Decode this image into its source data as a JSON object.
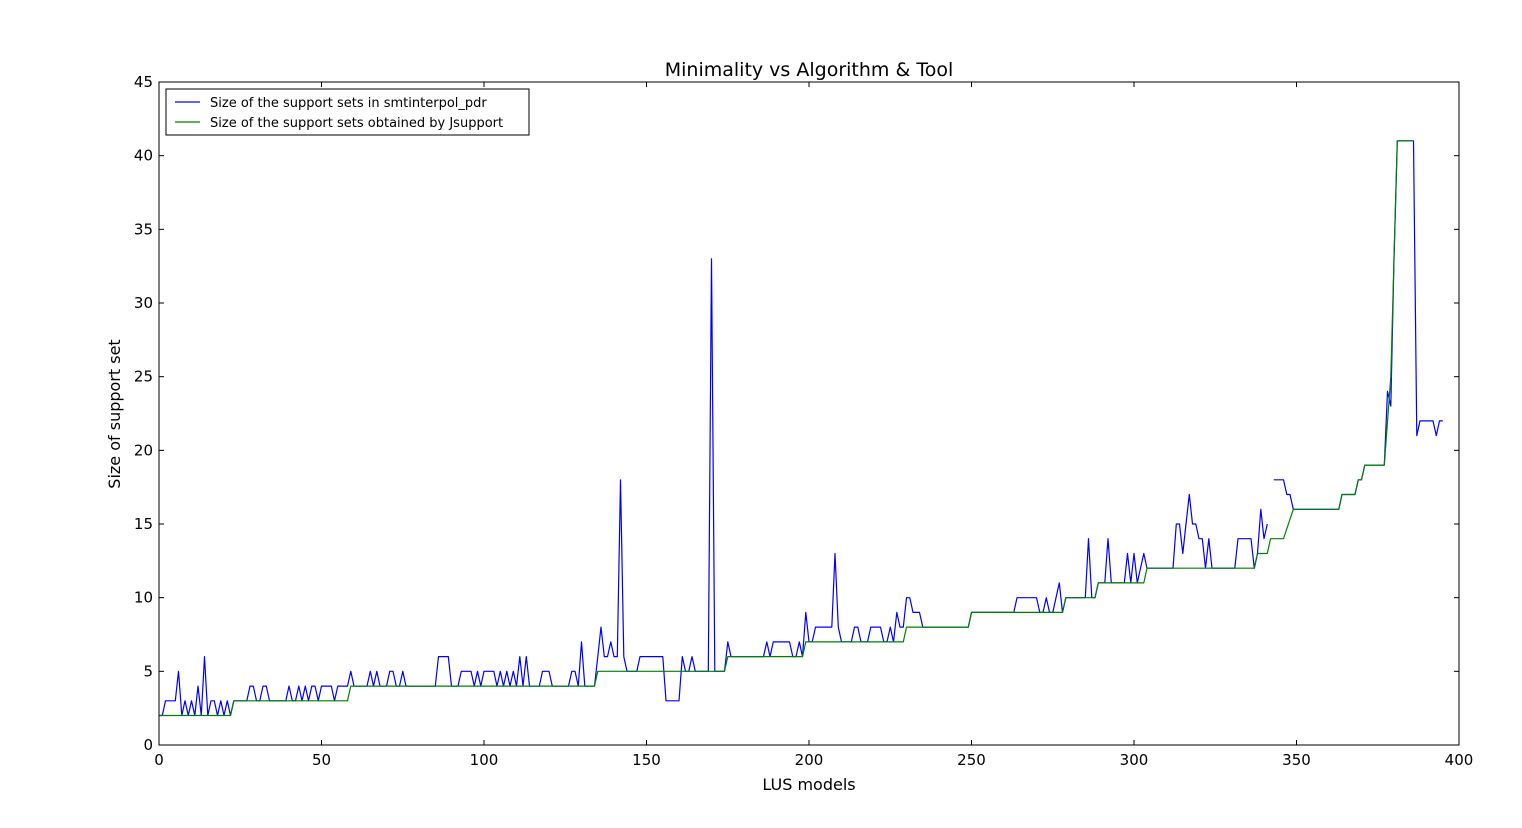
{
  "chart_data": {
    "type": "line",
    "title": "Minimality vs Algorithm & Tool",
    "xlabel": "LUS models",
    "ylabel": "Size of support set",
    "xlim": [
      0,
      400
    ],
    "ylim": [
      0,
      45
    ],
    "xticks": [
      0,
      50,
      100,
      150,
      200,
      250,
      300,
      350,
      400
    ],
    "yticks": [
      0,
      5,
      10,
      15,
      20,
      25,
      30,
      35,
      40,
      45
    ],
    "grid": false,
    "legend_position": "top-left",
    "series": [
      {
        "name": "Size of the support sets in smtinterpol_pdr",
        "color": "#0000ff",
        "segments": [
          [
            [
              0,
              2
            ],
            [
              1,
              2
            ],
            [
              2,
              3
            ],
            [
              5,
              3
            ],
            [
              6,
              5
            ],
            [
              7,
              2
            ],
            [
              8,
              3
            ],
            [
              9,
              2
            ],
            [
              10,
              3
            ],
            [
              11,
              2
            ],
            [
              12,
              4
            ],
            [
              13,
              2
            ],
            [
              14,
              6
            ],
            [
              15,
              2
            ],
            [
              16,
              3
            ],
            [
              17,
              3
            ],
            [
              18,
              2
            ],
            [
              19,
              3
            ],
            [
              20,
              2
            ],
            [
              21,
              3
            ],
            [
              22,
              2
            ],
            [
              23,
              3
            ],
            [
              27,
              3
            ],
            [
              28,
              4
            ],
            [
              29,
              4
            ],
            [
              30,
              3
            ],
            [
              31,
              3
            ],
            [
              32,
              4
            ],
            [
              33,
              4
            ],
            [
              34,
              3
            ],
            [
              39,
              3
            ],
            [
              40,
              4
            ],
            [
              41,
              3
            ],
            [
              42,
              3
            ],
            [
              43,
              4
            ],
            [
              44,
              3
            ],
            [
              45,
              4
            ],
            [
              46,
              3
            ],
            [
              47,
              4
            ],
            [
              48,
              4
            ],
            [
              49,
              3
            ],
            [
              50,
              4
            ],
            [
              53,
              4
            ],
            [
              54,
              3
            ],
            [
              55,
              4
            ],
            [
              58,
              4
            ],
            [
              59,
              5
            ],
            [
              60,
              4
            ],
            [
              64,
              4
            ],
            [
              65,
              5
            ],
            [
              66,
              4
            ],
            [
              67,
              5
            ],
            [
              68,
              4
            ],
            [
              70,
              4
            ],
            [
              71,
              5
            ],
            [
              72,
              5
            ],
            [
              73,
              4
            ],
            [
              74,
              4
            ],
            [
              75,
              5
            ],
            [
              76,
              4
            ],
            [
              85,
              4
            ],
            [
              86,
              6
            ],
            [
              89,
              6
            ],
            [
              90,
              4
            ],
            [
              92,
              4
            ],
            [
              93,
              5
            ],
            [
              96,
              5
            ],
            [
              97,
              4
            ],
            [
              98,
              5
            ],
            [
              99,
              4
            ],
            [
              100,
              5
            ],
            [
              103,
              5
            ],
            [
              104,
              4
            ],
            [
              105,
              5
            ],
            [
              106,
              4
            ],
            [
              107,
              5
            ],
            [
              108,
              4
            ],
            [
              109,
              5
            ],
            [
              110,
              4
            ],
            [
              111,
              6
            ],
            [
              112,
              4
            ],
            [
              113,
              6
            ],
            [
              114,
              4
            ],
            [
              117,
              4
            ],
            [
              118,
              5
            ],
            [
              120,
              5
            ],
            [
              121,
              4
            ],
            [
              126,
              4
            ],
            [
              127,
              5
            ],
            [
              128,
              5
            ],
            [
              129,
              4
            ],
            [
              130,
              7
            ],
            [
              131,
              4
            ],
            [
              134,
              4
            ],
            [
              135,
              6
            ],
            [
              136,
              8
            ],
            [
              137,
              6
            ],
            [
              138,
              6
            ],
            [
              139,
              7
            ],
            [
              140,
              6
            ],
            [
              141,
              6
            ],
            [
              142,
              18
            ],
            [
              143,
              6
            ],
            [
              144,
              5
            ],
            [
              147,
              5
            ],
            [
              148,
              6
            ],
            [
              155,
              6
            ],
            [
              156,
              3
            ],
            [
              160,
              3
            ],
            [
              161,
              6
            ],
            [
              162,
              5
            ],
            [
              163,
              5
            ],
            [
              164,
              6
            ],
            [
              165,
              5
            ],
            [
              169,
              5
            ],
            [
              170,
              33
            ],
            [
              171,
              5
            ],
            [
              174,
              5
            ],
            [
              175,
              7
            ],
            [
              176,
              6
            ],
            [
              186,
              6
            ],
            [
              187,
              7
            ],
            [
              188,
              6
            ],
            [
              189,
              7
            ],
            [
              194,
              7
            ],
            [
              195,
              6
            ],
            [
              196,
              6
            ],
            [
              197,
              7
            ],
            [
              198,
              6
            ],
            [
              199,
              9
            ],
            [
              200,
              7
            ],
            [
              201,
              7
            ],
            [
              202,
              8
            ],
            [
              207,
              8
            ],
            [
              208,
              13
            ],
            [
              209,
              8
            ],
            [
              210,
              7
            ],
            [
              213,
              7
            ],
            [
              214,
              8
            ],
            [
              215,
              8
            ],
            [
              216,
              7
            ],
            [
              218,
              7
            ],
            [
              219,
              8
            ],
            [
              222,
              8
            ],
            [
              223,
              7
            ],
            [
              224,
              7
            ],
            [
              225,
              8
            ],
            [
              226,
              7
            ],
            [
              227,
              9
            ],
            [
              228,
              8
            ],
            [
              229,
              8
            ],
            [
              230,
              10
            ],
            [
              231,
              10
            ],
            [
              232,
              9
            ],
            [
              234,
              9
            ],
            [
              235,
              8
            ],
            [
              249,
              8
            ],
            [
              250,
              9
            ],
            [
              263,
              9
            ],
            [
              264,
              10
            ],
            [
              270,
              10
            ],
            [
              271,
              9
            ],
            [
              272,
              9
            ],
            [
              273,
              10
            ],
            [
              274,
              9
            ],
            [
              275,
              9
            ],
            [
              276,
              10
            ],
            [
              277,
              11
            ],
            [
              278,
              9
            ],
            [
              279,
              10
            ],
            [
              285,
              10
            ],
            [
              286,
              14
            ],
            [
              287,
              10
            ],
            [
              288,
              10
            ],
            [
              289,
              11
            ],
            [
              291,
              11
            ],
            [
              292,
              14
            ],
            [
              293,
              11
            ],
            [
              297,
              11
            ],
            [
              298,
              13
            ],
            [
              299,
              11
            ],
            [
              300,
              13
            ],
            [
              301,
              11
            ],
            [
              302,
              12
            ],
            [
              303,
              13
            ],
            [
              304,
              12
            ],
            [
              312,
              12
            ],
            [
              313,
              15
            ],
            [
              314,
              15
            ],
            [
              315,
              13
            ],
            [
              316,
              15
            ],
            [
              317,
              17
            ],
            [
              318,
              15
            ],
            [
              319,
              15
            ],
            [
              320,
              14
            ],
            [
              321,
              14
            ],
            [
              322,
              12
            ],
            [
              323,
              14
            ],
            [
              324,
              12
            ],
            [
              331,
              12
            ],
            [
              332,
              14
            ],
            [
              336,
              14
            ],
            [
              337,
              12
            ],
            [
              338,
              13
            ],
            [
              339,
              16
            ],
            [
              340,
              14
            ],
            [
              341,
              15
            ]
          ],
          [
            [
              343,
              18
            ],
            [
              346,
              18
            ],
            [
              347,
              17
            ],
            [
              348,
              17
            ],
            [
              349,
              16
            ],
            [
              363,
              16
            ],
            [
              364,
              17
            ],
            [
              368,
              17
            ],
            [
              369,
              18
            ],
            [
              370,
              18
            ],
            [
              371,
              19
            ],
            [
              377,
              19
            ],
            [
              378,
              24
            ],
            [
              379,
              23
            ],
            [
              380,
              33
            ],
            [
              381,
              41
            ],
            [
              386,
              41
            ],
            [
              387,
              21
            ],
            [
              388,
              22
            ],
            [
              392,
              22
            ],
            [
              393,
              21
            ],
            [
              394,
              22
            ],
            [
              395,
              22
            ]
          ]
        ]
      },
      {
        "name": "Size of the support sets obtained by Jsupport",
        "color": "#008000",
        "segments": [
          [
            [
              0,
              2
            ],
            [
              22,
              2
            ],
            [
              23,
              3
            ],
            [
              58,
              3
            ],
            [
              59,
              4
            ],
            [
              134,
              4
            ],
            [
              135,
              5
            ],
            [
              174,
              5
            ],
            [
              175,
              6
            ],
            [
              198,
              6
            ],
            [
              199,
              7
            ],
            [
              229,
              7
            ],
            [
              230,
              8
            ],
            [
              249,
              8
            ],
            [
              250,
              9
            ],
            [
              278,
              9
            ],
            [
              279,
              10
            ],
            [
              288,
              10
            ],
            [
              289,
              11
            ],
            [
              303,
              11
            ],
            [
              304,
              12
            ],
            [
              337,
              12
            ],
            [
              338,
              13
            ],
            [
              341,
              13
            ],
            [
              342,
              14
            ],
            [
              346,
              14
            ],
            [
              349,
              16
            ],
            [
              363,
              16
            ],
            [
              364,
              17
            ],
            [
              368,
              17
            ],
            [
              369,
              18
            ],
            [
              370,
              18
            ],
            [
              371,
              19
            ],
            [
              377,
              19
            ],
            [
              379,
              25
            ],
            [
              380,
              33
            ],
            [
              381,
              41
            ],
            [
              386,
              41
            ]
          ]
        ]
      }
    ]
  }
}
